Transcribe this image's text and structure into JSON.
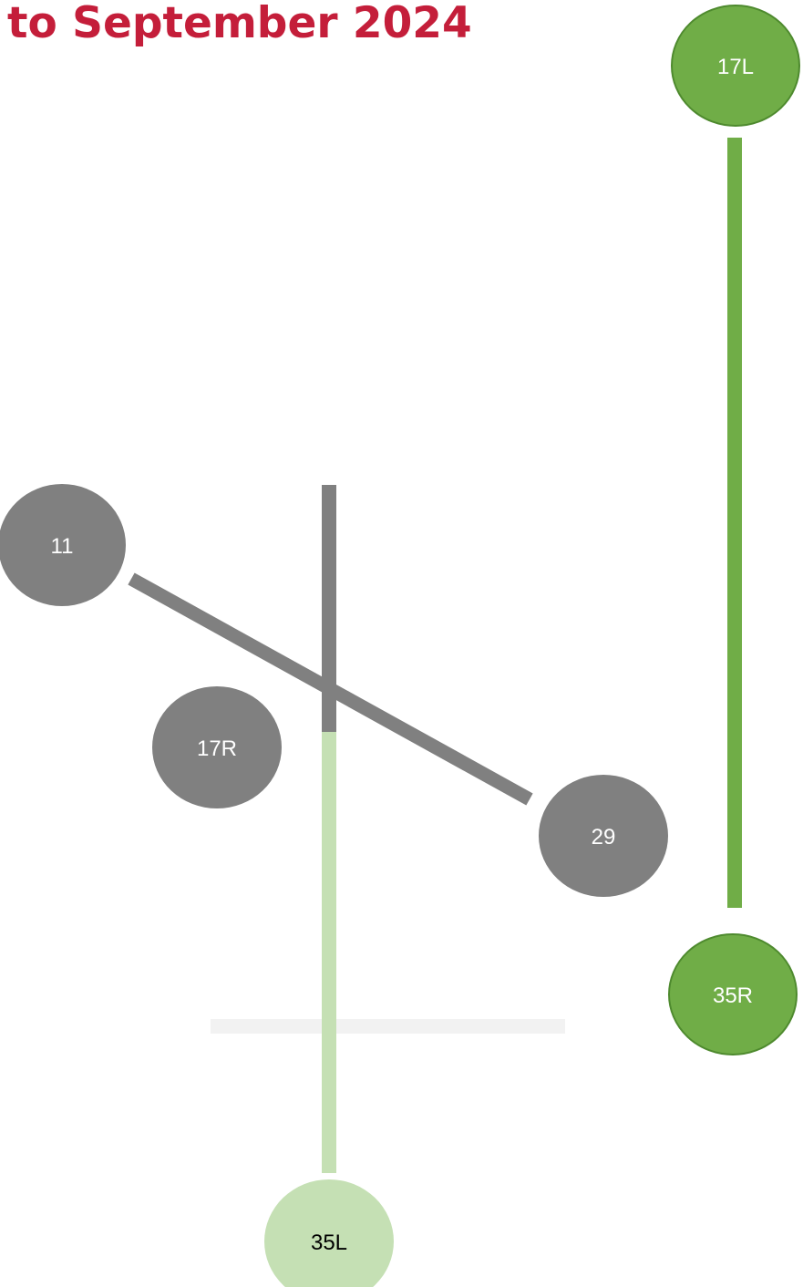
{
  "title": "to September 2024",
  "colors": {
    "title": "#c41e3a",
    "active_green": "#70ad47",
    "active_green_stroke": "#4e8a2e",
    "light_green": "#c5e0b4",
    "inactive_gray": "#808080",
    "pale": "#f2f2f2"
  },
  "runways": {
    "rwy_17l_35r": {
      "name": "17L/35R",
      "status": "active"
    },
    "rwy_17r_35l": {
      "name": "17R/35L",
      "status": "partial"
    },
    "rwy_11_29": {
      "name": "11/29",
      "status": "inactive"
    },
    "taxiway": {
      "status": "pale"
    }
  },
  "labels": {
    "r17l": "17L",
    "r35r": "35R",
    "r11": "11",
    "r29": "29",
    "r17r": "17R",
    "r35l": "35L"
  }
}
